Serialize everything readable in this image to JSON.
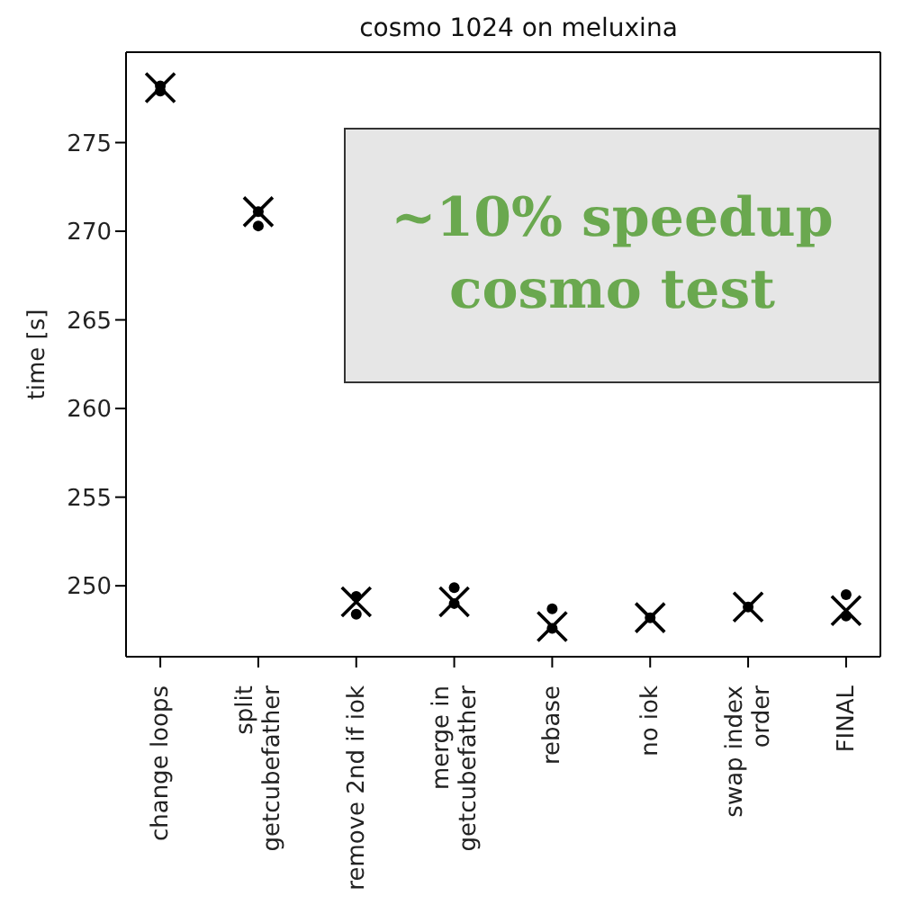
{
  "chart_data": {
    "type": "scatter",
    "title": "cosmo 1024 on meluxina",
    "ylabel": "time [s]",
    "categories": [
      "change loops",
      "split\ngetcubefather",
      "remove 2nd if iok",
      "merge in\ngetcubefather",
      "rebase",
      "no iok",
      "swap index\norder",
      "FINAL"
    ],
    "series": [
      {
        "color": "#000000",
        "marker": "cross",
        "values": [
          278.1,
          271.1,
          249.1,
          249.1,
          247.7,
          248.2,
          248.8,
          248.6
        ]
      },
      {
        "color": "#000000",
        "marker": "circle",
        "values": [
          278.2,
          271.1,
          249.4,
          249.9,
          248.7,
          248.2,
          248.8,
          249.5
        ]
      },
      {
        "color": "#000000",
        "marker": "circle",
        "values": [
          277.9,
          270.3,
          248.4,
          249.0,
          247.6,
          null,
          null,
          248.3
        ]
      }
    ],
    "ylim": [
      246,
      280.1
    ],
    "yticks": [
      250,
      255,
      260,
      265,
      270,
      275
    ],
    "grid": false,
    "legend": false,
    "annotations": [
      "~10% speedup\ncosmo test"
    ]
  }
}
